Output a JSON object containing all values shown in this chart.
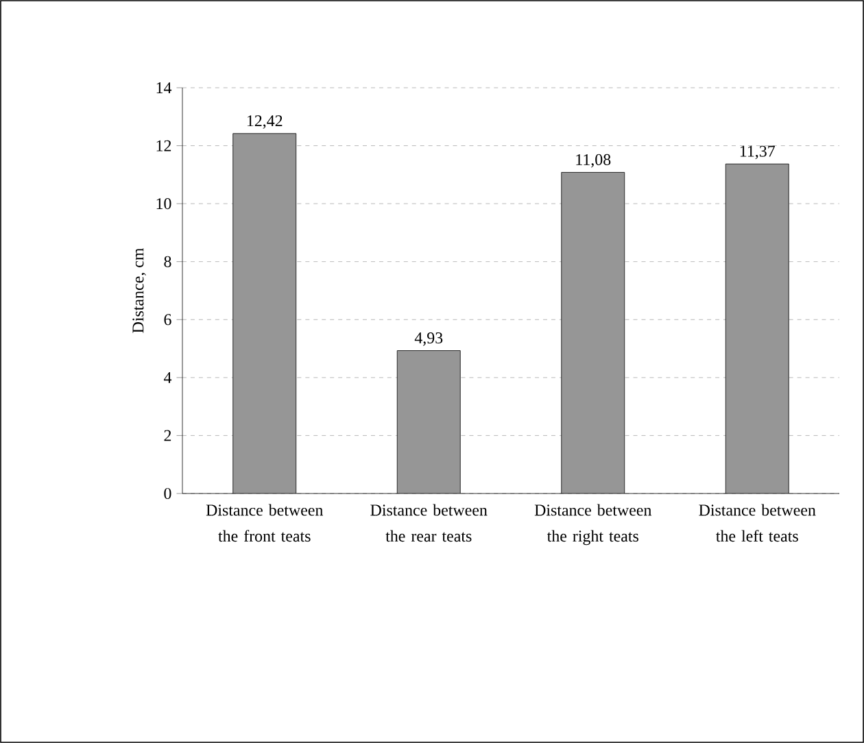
{
  "chart_data": {
    "type": "bar",
    "ylabel": "Distance, cm",
    "categories": [
      "Distance between the front teats",
      "Distance between the rear teats",
      "Distance between the right teats",
      "Distance between the left teats"
    ],
    "values": [
      12.42,
      4.93,
      11.08,
      11.37
    ],
    "value_labels": [
      "12,42",
      "4,93",
      "11,08",
      "11,37"
    ],
    "color": "#969696",
    "ylim": [
      0,
      14
    ],
    "yticks": [
      0,
      2,
      4,
      6,
      8,
      10,
      12,
      14
    ],
    "grid": "y"
  }
}
